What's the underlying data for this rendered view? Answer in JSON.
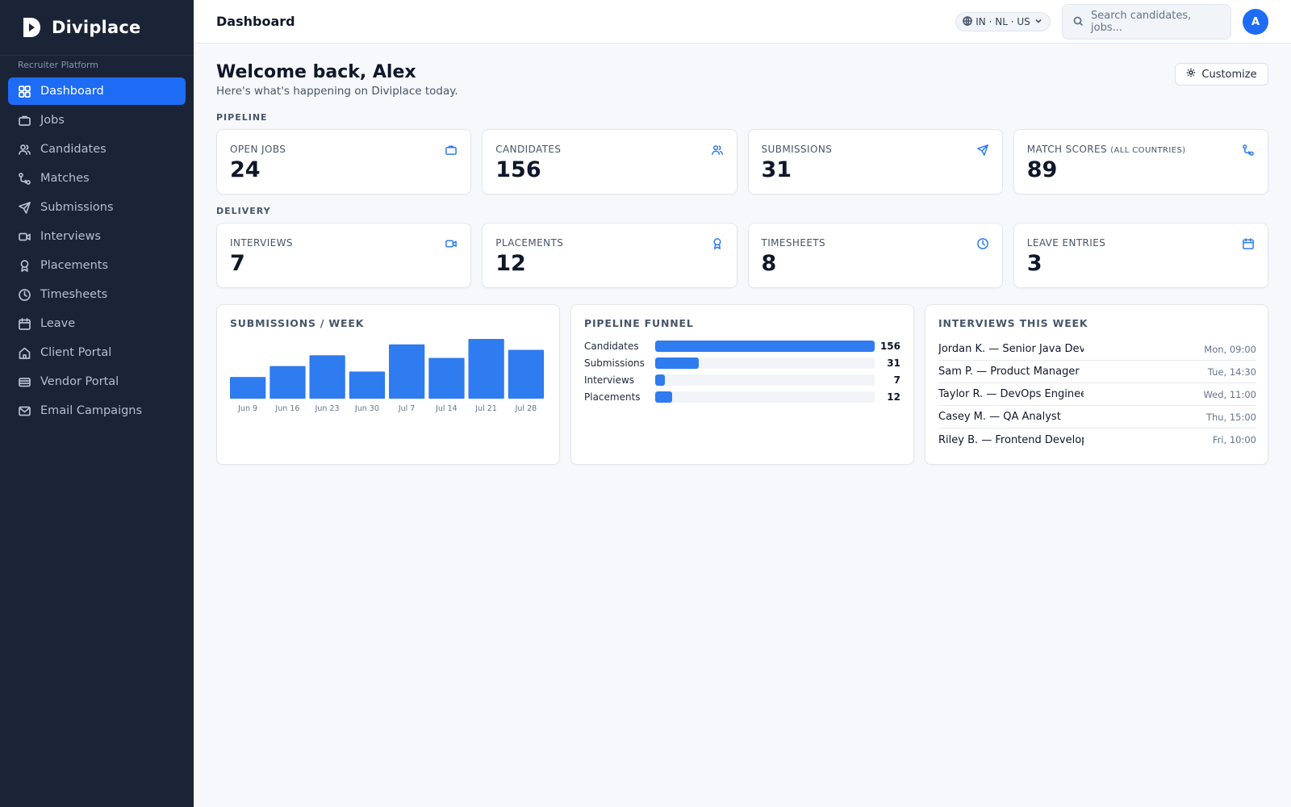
{
  "brand": {
    "name": "Diviplace",
    "platform_label": "Recruiter Platform"
  },
  "sidebar": {
    "items": [
      {
        "label": "Dashboard",
        "icon": "grid-icon",
        "active": true
      },
      {
        "label": "Jobs",
        "icon": "briefcase-icon"
      },
      {
        "label": "Candidates",
        "icon": "users-icon"
      },
      {
        "label": "Matches",
        "icon": "git-compare-icon"
      },
      {
        "label": "Submissions",
        "icon": "send-icon"
      },
      {
        "label": "Interviews",
        "icon": "video-icon"
      },
      {
        "label": "Placements",
        "icon": "award-icon"
      },
      {
        "label": "Timesheets",
        "icon": "clock-icon"
      },
      {
        "label": "Leave",
        "icon": "calendar-icon"
      },
      {
        "label": "Client Portal",
        "icon": "home-icon"
      },
      {
        "label": "Vendor Portal",
        "icon": "card-icon"
      },
      {
        "label": "Email Campaigns",
        "icon": "mail-icon"
      }
    ]
  },
  "topbar": {
    "title": "Dashboard",
    "region": "IN · NL · US",
    "search_placeholder": "Search candidates, jobs...",
    "avatar_initial": "A"
  },
  "main": {
    "welcome": "Welcome back, Alex",
    "subtitle": "Here's what's happening on Diviplace today.",
    "customize_label": "Customize",
    "pipeline_label": "PIPELINE",
    "delivery_label": "DELIVERY",
    "pipeline_stats": [
      {
        "label": "OPEN JOBS",
        "sub": "",
        "value": "24",
        "icon": "briefcase-icon"
      },
      {
        "label": "CANDIDATES",
        "sub": "",
        "value": "156",
        "icon": "users-icon"
      },
      {
        "label": "SUBMISSIONS",
        "sub": "",
        "value": "31",
        "icon": "send-icon"
      },
      {
        "label": "MATCH SCORES",
        "sub": "(ALL COUNTRIES)",
        "value": "89",
        "icon": "git-compare-icon"
      }
    ],
    "delivery_stats": [
      {
        "label": "INTERVIEWS",
        "sub": "",
        "value": "7",
        "icon": "video-icon"
      },
      {
        "label": "PLACEMENTS",
        "sub": "",
        "value": "12",
        "icon": "award-icon"
      },
      {
        "label": "TIMESHEETS",
        "sub": "",
        "value": "8",
        "icon": "clock-icon"
      },
      {
        "label": "LEAVE ENTRIES",
        "sub": "",
        "value": "3",
        "icon": "calendar-icon"
      }
    ],
    "submissions_panel_title": "SUBMISSIONS / WEEK",
    "funnel_panel_title": "PIPELINE FUNNEL",
    "funnel": [
      {
        "label": "Candidates",
        "value": 156
      },
      {
        "label": "Submissions",
        "value": 31
      },
      {
        "label": "Interviews",
        "value": 7
      },
      {
        "label": "Placements",
        "value": 12
      }
    ],
    "interviews_panel_title": "INTERVIEWS THIS WEEK",
    "interviews": [
      {
        "name": "Jordan K. — Senior Java Developer",
        "time": "Mon, 09:00"
      },
      {
        "name": "Sam P. — Product Manager",
        "time": "Tue, 14:30"
      },
      {
        "name": "Taylor R. — DevOps Engineer",
        "time": "Wed, 11:00"
      },
      {
        "name": "Casey M. — QA Analyst",
        "time": "Thu, 15:00"
      },
      {
        "name": "Riley B. — Frontend Developer",
        "time": "Fri, 10:00"
      }
    ]
  },
  "colors": {
    "accent": "#1e6cf5",
    "bar": "#2f7bf0",
    "sidebar_bg": "#1b2437"
  },
  "chart_data": {
    "type": "bar",
    "title": "SUBMISSIONS / WEEK",
    "categories": [
      "Jun 9",
      "Jun 16",
      "Jun 23",
      "Jun 30",
      "Jul 7",
      "Jul 14",
      "Jul 21",
      "Jul 28"
    ],
    "values": [
      4,
      6,
      8,
      5,
      10,
      7.5,
      11,
      9
    ],
    "ylim": [
      0,
      11
    ],
    "grid": false,
    "xlabel": "",
    "ylabel": ""
  }
}
